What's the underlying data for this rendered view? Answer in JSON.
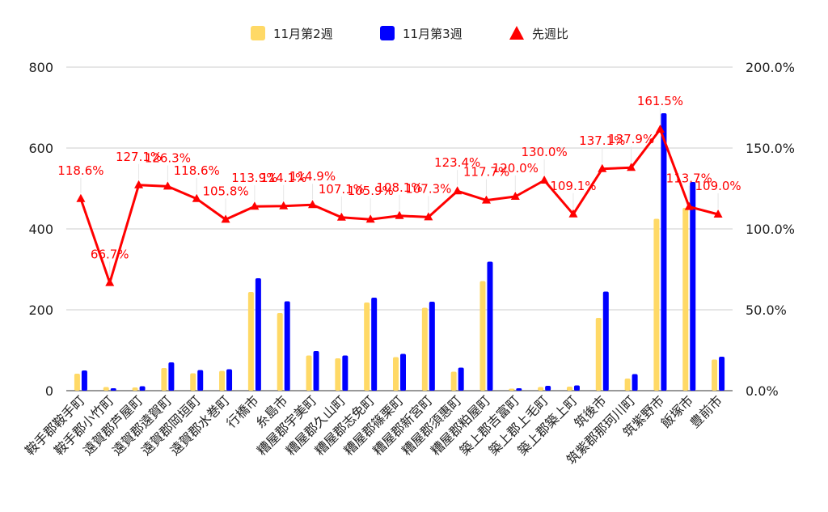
{
  "chart_data": {
    "type": "bar",
    "categories": [
      "鞍手郡鞍手町",
      "鞍手郡小竹町",
      "遠賀郡芦屋町",
      "遠賀郡遠賀町",
      "遠賀郡岡垣町",
      "遠賀郡水巻町",
      "行橋市",
      "糸島市",
      "糟屋郡宇美町",
      "糟屋郡久山町",
      "糟屋郡志免町",
      "糟屋郡篠栗町",
      "糟屋郡新宮町",
      "糟屋郡須惠町",
      "糟屋郡粕屋町",
      "築上郡吉富町",
      "築上郡上毛町",
      "築上郡築上町",
      "筑後市",
      "筑紫郡那珂川町",
      "筑紫野市",
      "飯塚市",
      "豊前市"
    ],
    "series": [
      {
        "name": "11月第2週",
        "color": "#ffd966",
        "values": [
          42,
          9,
          8,
          56,
          43,
          49,
          244,
          192,
          87,
          80,
          218,
          83,
          205,
          47,
          271,
          5,
          9,
          10,
          180,
          30,
          425,
          452,
          77
        ]
      },
      {
        "name": "11月第3週",
        "color": "#0000ff",
        "values": [
          50,
          6,
          11,
          70,
          51,
          53,
          278,
          221,
          98,
          87,
          230,
          91,
          220,
          57,
          319,
          6,
          12,
          13,
          245,
          41,
          686,
          516,
          84
        ]
      },
      {
        "name": "先週比",
        "color": "#ff0000",
        "type": "line",
        "axis": "right",
        "values": [
          118.6,
          66.7,
          127.1,
          126.3,
          118.6,
          105.8,
          113.9,
          114.1,
          114.9,
          107.1,
          105.9,
          108.1,
          107.3,
          123.4,
          117.7,
          120.0,
          130.0,
          109.1,
          137.1,
          137.9,
          161.5,
          113.7,
          109.0
        ]
      }
    ],
    "labels": [
      "118.6%",
      "66.7%",
      "127.1%",
      "126.3%",
      "118.6%",
      "105.8%",
      "113.9%",
      "114.1%",
      "114.9%",
      "107.1%",
      "105.9%",
      "108.1%",
      "107.3%",
      "123.4%",
      "117.7%",
      "120.0%",
      "130.0%",
      "109.1%",
      "137.1%",
      "137.9%",
      "161.5%",
      "113.7%",
      "109.0%"
    ],
    "y_left": {
      "ticks": [
        "0",
        "200",
        "400",
        "600",
        "800"
      ],
      "range": [
        0,
        800
      ]
    },
    "y_right": {
      "ticks": [
        "0.0%",
        "50.0%",
        "100.0%",
        "150.0%",
        "200.0%"
      ],
      "range": [
        0,
        200
      ]
    },
    "legend_position": "top",
    "grid": true
  }
}
